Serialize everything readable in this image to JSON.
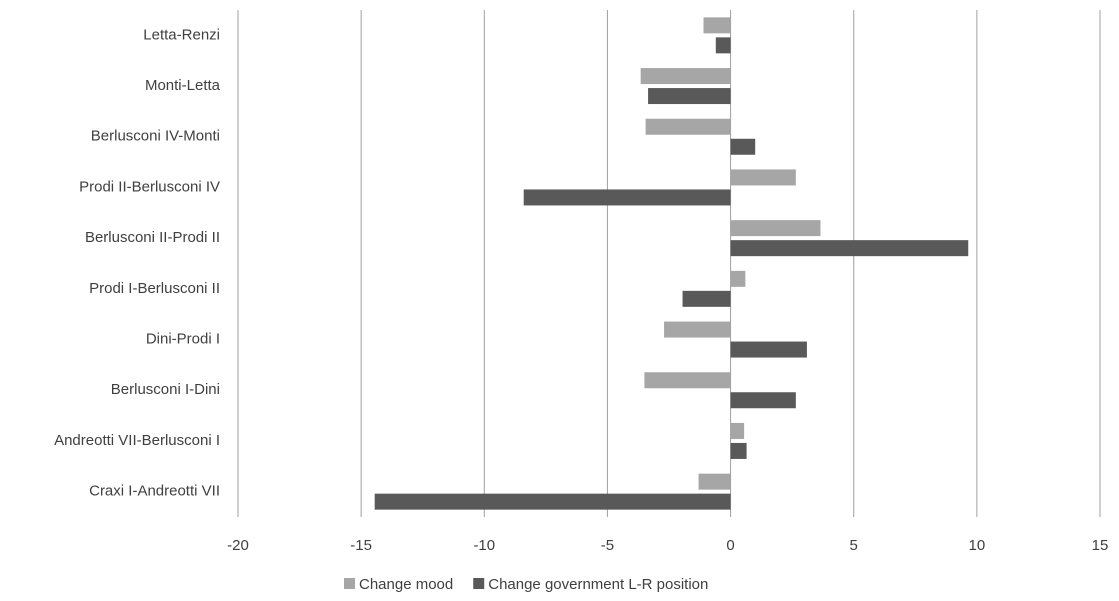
{
  "chart_data": {
    "type": "hbar",
    "categories": [
      "Letta-Renzi",
      "Monti-Letta",
      "Berlusconi IV-Monti",
      "Prodi II-Berlusconi IV",
      "Berlusconi II-Prodi II",
      "Prodi I-Berlusconi II",
      "Dini-Prodi I",
      "Berlusconi I-Dini",
      "Andreotti VII-Berlusconi I",
      "Craxi I-Andreotti VII"
    ],
    "series": [
      {
        "name": "Change mood",
        "color": "#a6a6a6",
        "values": [
          -1.1,
          -3.65,
          -3.45,
          2.65,
          3.65,
          0.6,
          -2.7,
          -3.5,
          0.55,
          -1.3
        ]
      },
      {
        "name": "Change government L-R position",
        "color": "#595959",
        "values": [
          -0.6,
          -3.35,
          1.0,
          -8.4,
          9.65,
          -1.95,
          3.1,
          2.65,
          0.65,
          -14.45
        ]
      }
    ],
    "xlim": [
      -20,
      15
    ],
    "xticks": [
      -20,
      -15,
      -10,
      -5,
      0,
      5,
      10,
      15
    ],
    "grid": true,
    "legend": "bottom"
  }
}
